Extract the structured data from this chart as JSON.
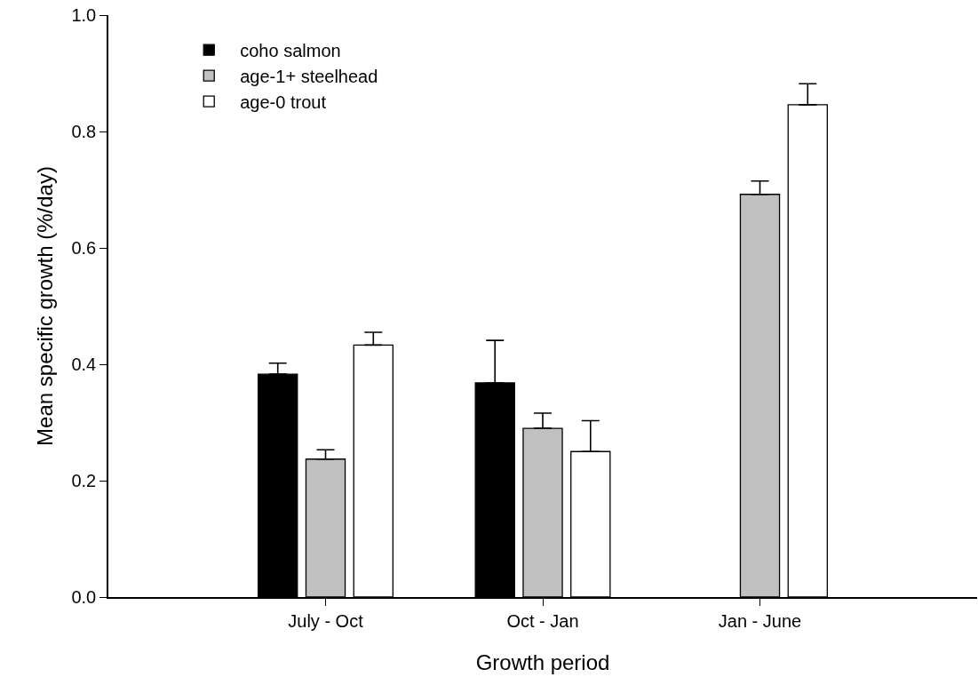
{
  "chart_data": {
    "type": "bar",
    "xlabel": "Growth period",
    "ylabel": "Mean specific growth (%/day)",
    "categories": [
      "July - Oct",
      "Oct - Jan",
      "Jan - June"
    ],
    "series": [
      {
        "name": "coho salmon",
        "color": "#000000",
        "values": [
          0.383,
          0.368,
          null
        ],
        "errors": [
          [
            0.383,
            0.402
          ],
          [
            0.368,
            0.441
          ],
          null
        ]
      },
      {
        "name": "age-1+ steelhead",
        "color": "#c0c0c0",
        "values": [
          0.237,
          0.29,
          0.692
        ],
        "errors": [
          [
            0.237,
            0.253
          ],
          [
            0.29,
            0.316
          ],
          [
            0.692,
            0.715
          ]
        ]
      },
      {
        "name": "age-0 trout",
        "color": "#ffffff",
        "values": [
          0.433,
          0.25,
          0.846
        ],
        "errors": [
          [
            0.433,
            0.455
          ],
          [
            0.25,
            0.303
          ],
          [
            0.846,
            0.882
          ]
        ]
      }
    ],
    "ylim": [
      0,
      1.0
    ],
    "yticks": [
      {
        "value": 0,
        "label": "0.0"
      },
      0.2,
      0.4,
      0.6,
      0.8,
      {
        "value": 1,
        "label": "1.0"
      }
    ],
    "legend": "top left"
  }
}
